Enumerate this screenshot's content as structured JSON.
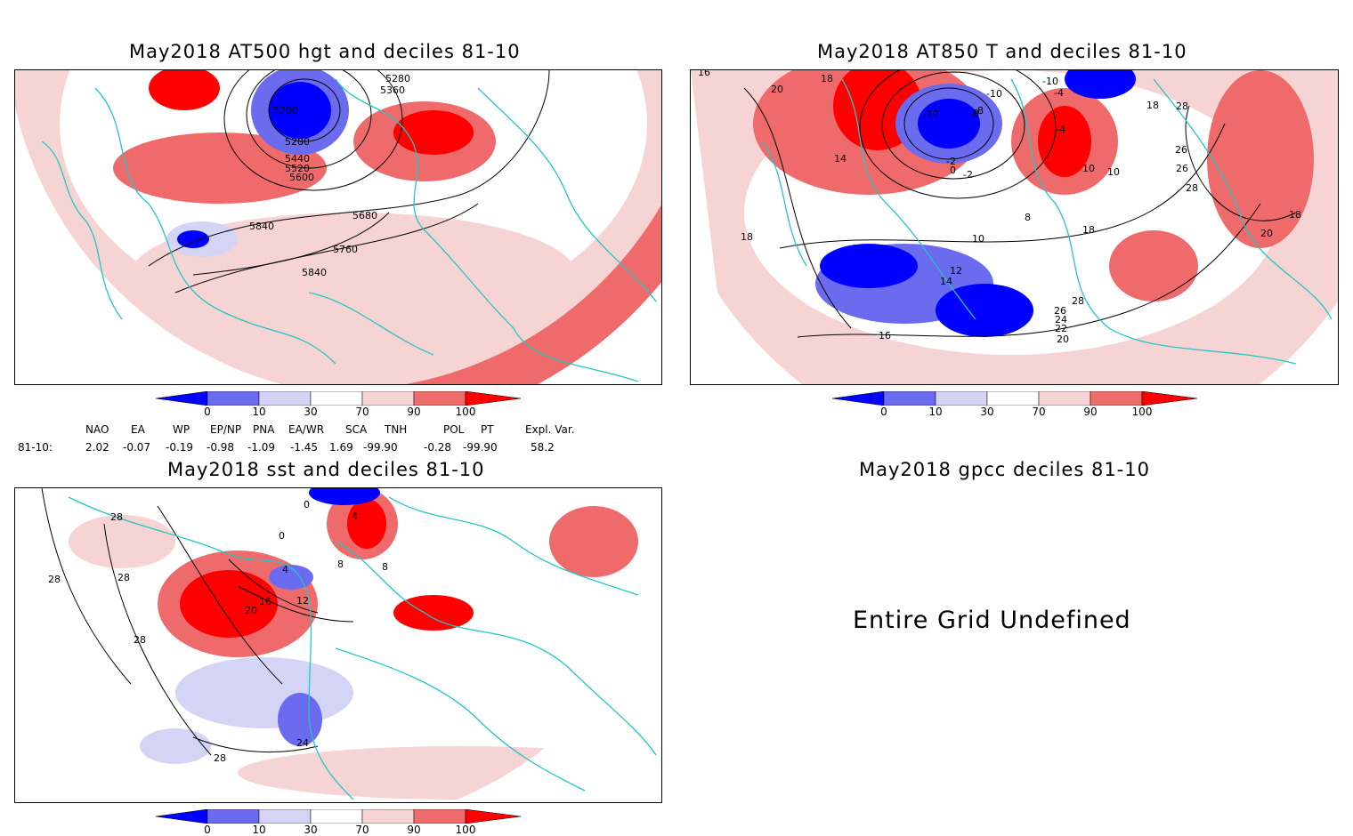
{
  "panels": {
    "hgt500": {
      "title": "May2018 AT500 hgt and deciles 81-10",
      "contour_labels": [
        "5280",
        "5360",
        "5200",
        "5280",
        "5440",
        "5520",
        "5600",
        "5680",
        "5840",
        "5760",
        "5840"
      ]
    },
    "t850": {
      "title": "May2018 AT850 T and deciles 81-10",
      "contour_labels": [
        "16",
        "20",
        "18",
        "18",
        "-10",
        "-8",
        "-12",
        "-8",
        "-2",
        "0",
        "-2",
        "-10",
        "-4",
        "-4",
        "10",
        "10",
        "8",
        "14",
        "18",
        "18",
        "28",
        "26",
        "26",
        "28",
        "18",
        "20",
        "10",
        "12",
        "14",
        "28",
        "26",
        "24",
        "22",
        "20",
        "16"
      ]
    },
    "sst": {
      "title": "May2018 sst and deciles 81-10",
      "contour_labels": [
        "28",
        "28",
        "28",
        "28",
        "0",
        "0",
        "4",
        "4",
        "8",
        "8",
        "12",
        "16",
        "20",
        "24",
        "28"
      ]
    },
    "gpcc": {
      "title": "May2018 gpcc deciles 81-10",
      "message": "Entire Grid Undefined"
    }
  },
  "colorbar": {
    "labels": [
      "0",
      "10",
      "30",
      "70",
      "90",
      "100"
    ],
    "colors": [
      "#0000ff",
      "#6b6bef",
      "#d4d4f7",
      "#ffffff",
      "#f7d4d4",
      "#ef6b6b",
      "#ff0000"
    ]
  },
  "indices": {
    "headers": [
      "NAO",
      "EA",
      "WP",
      "EP/NP",
      "PNA",
      "EA/WR",
      "SCA",
      "TNH",
      "POL",
      "PT",
      "Expl. Var."
    ],
    "row_label": "81-10:",
    "values": [
      "2.02",
      "-0.07",
      "-0.19",
      "-0.98",
      "-1.09",
      "-1.45",
      "1.69",
      "-99.90",
      "-0.28",
      "-99.90",
      "58.2"
    ]
  },
  "colors": {
    "coast": "#21c7c7",
    "strong_pos": "#ff0000",
    "pos": "#ef6b6b",
    "weak_pos": "#f7d4d4",
    "weak_neg": "#d4d4f7",
    "neg": "#6b6bef",
    "strong_neg": "#0000ff"
  }
}
